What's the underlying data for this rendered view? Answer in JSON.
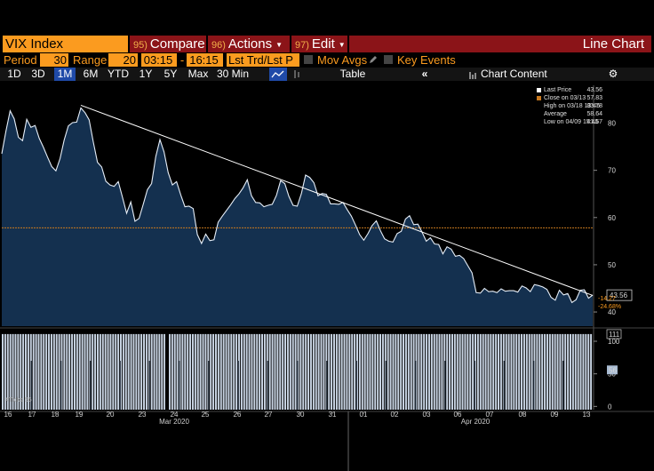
{
  "header": {
    "security": "VIX Index",
    "compare": {
      "num": "95)",
      "label": "Compare"
    },
    "actions": {
      "num": "96)",
      "label": "Actions"
    },
    "edit": {
      "num": "97)",
      "label": "Edit"
    },
    "chart_type": "Line Chart"
  },
  "controls": {
    "period_label": "Period",
    "period_value": "30",
    "range_label": "Range",
    "range_value": "20",
    "time_from": "03:15",
    "time_sep": "-",
    "time_to": "16:15",
    "lst_trd": "Lst Trd/Lst P",
    "mov_avgs": "Mov Avgs",
    "key_events": "Key Events"
  },
  "timeframes": [
    "1D",
    "3D",
    "1M",
    "6M",
    "YTD",
    "1Y",
    "5Y",
    "Max"
  ],
  "active_timeframe": "1M",
  "interval": "30 Min",
  "table_label": "Table",
  "chart_content_label": "Chart Content",
  "legend": {
    "last_price": {
      "label": "Last Price",
      "value": "43.56"
    },
    "close": {
      "label": "Close on 03/13",
      "value": "57.83"
    },
    "high": {
      "label": "High on 03/18 13:45",
      "value": "83.78"
    },
    "average": {
      "label": "Average",
      "value": "58.64"
    },
    "low": {
      "label": "Low on 04/09 15:45",
      "value": "41.67"
    }
  },
  "annotations": {
    "last_price_tag": "43.56",
    "change": "-14.27",
    "change_pct": "-24.68%",
    "ticks_last": "111",
    "ticks_second": "56",
    "ticks_series": "#Ticks 56"
  },
  "colors": {
    "accent_orange": "#fb9b1f",
    "button_red": "#8b1418",
    "area_fill": "#14304f",
    "line": "#e6eef8",
    "trendline": "#ffffff",
    "close_line": "#c8781e",
    "ticks_fill": "#c7d3e2"
  },
  "chart_data": {
    "type": "area",
    "price": {
      "ylim": [
        37,
        88
      ],
      "yticks": [
        40,
        50,
        60,
        70,
        80
      ],
      "close_reference": 57.83,
      "trendline": {
        "from": {
          "day": "03/18",
          "value": 83.78
        },
        "to": {
          "day": "04/13",
          "value": 43.5
        }
      },
      "values": [
        73.5,
        78.3,
        82.6,
        80.9,
        77.0,
        76.3,
        80.8,
        79.1,
        79.5,
        76.8,
        74.9,
        72.8,
        70.8,
        69.9,
        72.5,
        76.4,
        79.4,
        80.1,
        80.2,
        83.2,
        82.2,
        80.7,
        76.0,
        71.7,
        70.7,
        67.7,
        66.9,
        66.6,
        67.6,
        64.3,
        60.9,
        63.3,
        59.2,
        59.8,
        62.8,
        65.9,
        67.2,
        72.9,
        76.5,
        73.9,
        69.5,
        66.9,
        67.6,
        64.8,
        62.3,
        62.4,
        61.9,
        56.4,
        54.5,
        56.5,
        55.1,
        55.3,
        59.0,
        60.3,
        61.5,
        62.7,
        64.0,
        65.0,
        66.3,
        68.0,
        64.6,
        63.2,
        63.1,
        62.3,
        62.6,
        62.8,
        64.7,
        67.8,
        67.2,
        64.5,
        62.6,
        62.4,
        65.1,
        69.0,
        68.5,
        67.4,
        64.6,
        65.1,
        64.9,
        62.9,
        62.9,
        62.8,
        63.2,
        61.7,
        60.3,
        58.4,
        56.4,
        55.2,
        56.6,
        58.3,
        59.3,
        57.2,
        55.5,
        55.0,
        54.8,
        56.6,
        57.1,
        59.7,
        60.4,
        58.5,
        58.6,
        56.9,
        55.0,
        55.7,
        54.4,
        54.3,
        52.3,
        53.8,
        53.3,
        51.8,
        52.0,
        51.3,
        49.8,
        48.3,
        44.1,
        44.0,
        45.0,
        44.3,
        44.4,
        44.1,
        44.9,
        44.4,
        44.5,
        44.5,
        44.2,
        45.5,
        45.1,
        44.3,
        45.8,
        45.6,
        45.3,
        44.8,
        43.1,
        42.5,
        44.6,
        43.6,
        43.9,
        42.0,
        42.6,
        44.6,
        44.7,
        42.9,
        43.56
      ],
      "series_name": ""
    },
    "ticks": {
      "ylim": [
        -5,
        115
      ],
      "yticks": [
        0,
        50,
        100
      ],
      "typical": 111
    },
    "x_day_labels": [
      "16",
      "17",
      "18",
      "19",
      "20",
      "23",
      "24",
      "25",
      "26",
      "27",
      "30",
      "31",
      "01",
      "02",
      "03",
      "06",
      "07",
      "08",
      "09",
      "13"
    ],
    "x_month_labels": [
      "Mar 2020",
      "Apr 2020"
    ]
  }
}
